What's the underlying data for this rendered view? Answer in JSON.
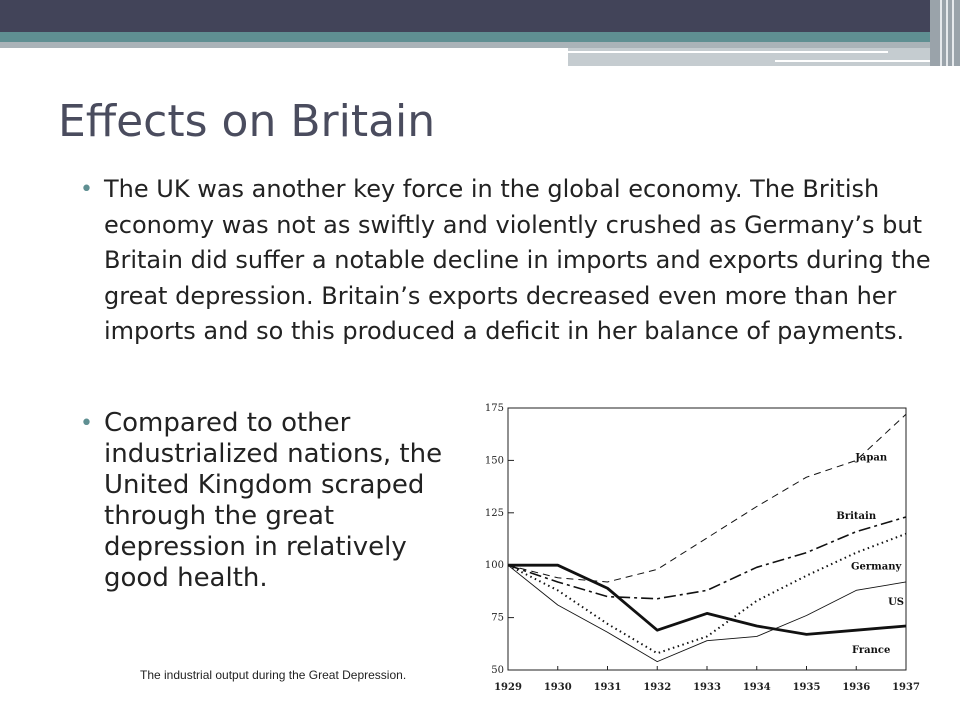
{
  "slide": {
    "title": "Effects on Britain",
    "paragraphs": [
      "The UK was another key force in the global economy. The British economy was not as swiftly and violently crushed as Germany’s but Britain did suffer a notable decline in imports and exports during the great depression. Britain’s exports decreased even more than her imports and so this produced a deficit in her balance of payments.",
      "Compared to other industrialized nations, the United Kingdom scraped through the great depression in relatively good health."
    ],
    "caption": "The industrial output during the Great Depression."
  },
  "colors": {
    "accent": "#5f8f92",
    "title": "#4a4c5e",
    "topbar": "#424459"
  },
  "chart_data": {
    "type": "line",
    "title": "",
    "xlabel": "",
    "ylabel": "",
    "x": [
      1929,
      1930,
      1931,
      1932,
      1933,
      1934,
      1935,
      1936,
      1937
    ],
    "xlim": [
      1929,
      1937
    ],
    "ylim": [
      50,
      175
    ],
    "yticks": [
      50,
      75,
      100,
      125,
      150,
      175
    ],
    "grid": false,
    "series": [
      {
        "name": "Japan",
        "style": "dashed",
        "values": [
          100,
          94,
          92,
          98,
          113,
          128,
          142,
          150,
          172
        ]
      },
      {
        "name": "Britain",
        "style": "dashdot",
        "values": [
          100,
          92,
          85,
          84,
          88,
          99,
          106,
          116,
          123
        ]
      },
      {
        "name": "Germany",
        "style": "dotted",
        "values": [
          100,
          88,
          72,
          58,
          66,
          83,
          95,
          106,
          115
        ]
      },
      {
        "name": "US",
        "style": "thin",
        "values": [
          100,
          81,
          68,
          54,
          64,
          66,
          76,
          88,
          92
        ]
      },
      {
        "name": "France",
        "style": "solid-thick",
        "values": [
          100,
          100,
          89,
          69,
          77,
          71,
          67,
          69,
          71
        ]
      }
    ]
  }
}
